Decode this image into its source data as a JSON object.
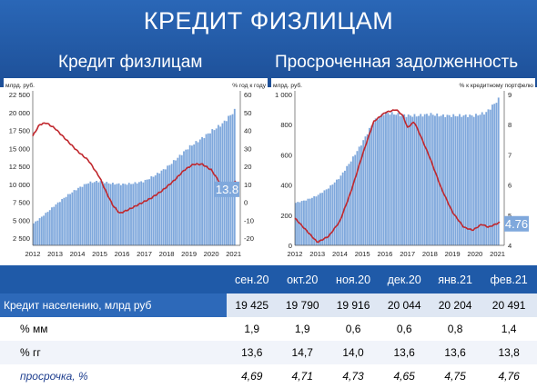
{
  "header": {
    "title": "КРЕДИТ ФИЗЛИЦАМ",
    "left_subtitle": "Кредит физлицам",
    "right_subtitle": "Просроченная задолженность"
  },
  "colors": {
    "header_bg": "#2a67b7",
    "bars": "#7fa8dc",
    "line": "#c0272d",
    "callout_bg": "#7fa8dc"
  },
  "chart_data": [
    {
      "type": "bar",
      "ylabel_left": "млрд. руб.",
      "ylabel_right": "% год к году",
      "x_ticks": [
        "2012",
        "2013",
        "2014",
        "2015",
        "2016",
        "2017",
        "2018",
        "2019",
        "2020",
        "2021"
      ],
      "y_left_ticks": [
        "22 500",
        "20 000",
        "17 500",
        "15 000",
        "12 500",
        "10 000",
        "7 500",
        "5 000",
        "2 500"
      ],
      "y_right_ticks": [
        "60",
        "50",
        "40",
        "30",
        "20",
        "10",
        "0",
        "-10",
        "-20"
      ],
      "ylim_left": [
        2500,
        22500
      ],
      "ylim_right": [
        -20,
        60
      ],
      "series": [
        {
          "axis": "left",
          "x": [
            2012.0,
            2012.5,
            2013.0,
            2013.5,
            2014.0,
            2014.5,
            2015.0,
            2015.5,
            2016.0,
            2016.5,
            2017.0,
            2017.5,
            2018.0,
            2018.5,
            2019.0,
            2019.5,
            2020.0,
            2020.5,
            2021.1
          ],
          "values": [
            5300,
            6500,
            7800,
            9000,
            10000,
            10800,
            11000,
            10700,
            10600,
            10700,
            11000,
            11800,
            12800,
            14100,
            15500,
            16500,
            17600,
            18600,
            20491
          ]
        },
        {
          "axis": "right",
          "x": [
            2012.0,
            2012.3,
            2012.6,
            2013.0,
            2013.5,
            2014.0,
            2014.5,
            2015.0,
            2015.3,
            2015.6,
            2015.9,
            2016.3,
            2016.8,
            2017.3,
            2017.8,
            2018.3,
            2018.8,
            2019.2,
            2019.6,
            2020.0,
            2020.4,
            2020.7,
            2021.1
          ],
          "values": [
            38,
            44,
            45,
            42,
            36,
            30,
            25,
            16,
            8,
            1,
            -3,
            -1,
            2,
            5,
            9,
            14,
            20,
            23,
            23,
            20,
            13,
            12,
            13.8
          ]
        }
      ],
      "callout": "13.8"
    },
    {
      "type": "bar",
      "ylabel_left": "млрд. руб.",
      "ylabel_right": "% к кредитному портфелю",
      "x_ticks": [
        "2012",
        "2013",
        "2014",
        "2015",
        "2016",
        "2017",
        "2018",
        "2019",
        "2020",
        "2021"
      ],
      "y_left_ticks": [
        "1 000",
        "800",
        "600",
        "400",
        "200",
        "0"
      ],
      "y_right_ticks": [
        "9",
        "8",
        "7",
        "6",
        "5",
        "4"
      ],
      "ylim_left": [
        0,
        1000
      ],
      "ylim_right": [
        4,
        9
      ],
      "series": [
        {
          "axis": "left",
          "x": [
            2012.0,
            2012.5,
            2013.0,
            2013.5,
            2014.0,
            2014.5,
            2015.0,
            2015.5,
            2016.0,
            2016.5,
            2017.0,
            2017.5,
            2018.0,
            2018.5,
            2019.0,
            2019.5,
            2020.0,
            2020.5,
            2021.1
          ],
          "values": [
            280,
            300,
            330,
            380,
            450,
            560,
            680,
            820,
            880,
            870,
            860,
            860,
            870,
            860,
            860,
            860,
            860,
            880,
            975
          ]
        },
        {
          "axis": "right",
          "x": [
            2012.0,
            2012.5,
            2013.0,
            2013.5,
            2014.0,
            2014.5,
            2015.0,
            2015.5,
            2016.0,
            2016.5,
            2016.8,
            2017.0,
            2017.3,
            2017.6,
            2018.0,
            2018.5,
            2019.0,
            2019.5,
            2019.9,
            2020.3,
            2020.6,
            2021.1
          ],
          "values": [
            4.9,
            4.5,
            4.1,
            4.3,
            4.8,
            5.8,
            7.0,
            8.1,
            8.4,
            8.5,
            8.3,
            7.9,
            8.1,
            7.6,
            6.9,
            5.9,
            5.1,
            4.6,
            4.5,
            4.7,
            4.6,
            4.76
          ]
        }
      ],
      "callout": "4.76"
    }
  ],
  "table": {
    "months": [
      "сен.20",
      "окт.20",
      "ноя.20",
      "дек.20",
      "янв.21",
      "фев.21"
    ],
    "rows": [
      {
        "label": "Кредит населению, млрд руб",
        "values": [
          "19 425",
          "19 790",
          "19 916",
          "20 044",
          "20 204",
          "20 491"
        ]
      },
      {
        "label": "% мм",
        "values": [
          "1,9",
          "1,9",
          "0,6",
          "0,6",
          "0,8",
          "1,4"
        ]
      },
      {
        "label": "% гг",
        "values": [
          "13,6",
          "14,7",
          "14,0",
          "13,6",
          "13,6",
          "13,8"
        ]
      },
      {
        "label": "просрочка, %",
        "values": [
          "4,69",
          "4,71",
          "4,73",
          "4,65",
          "4,75",
          "4,76"
        ]
      }
    ]
  }
}
